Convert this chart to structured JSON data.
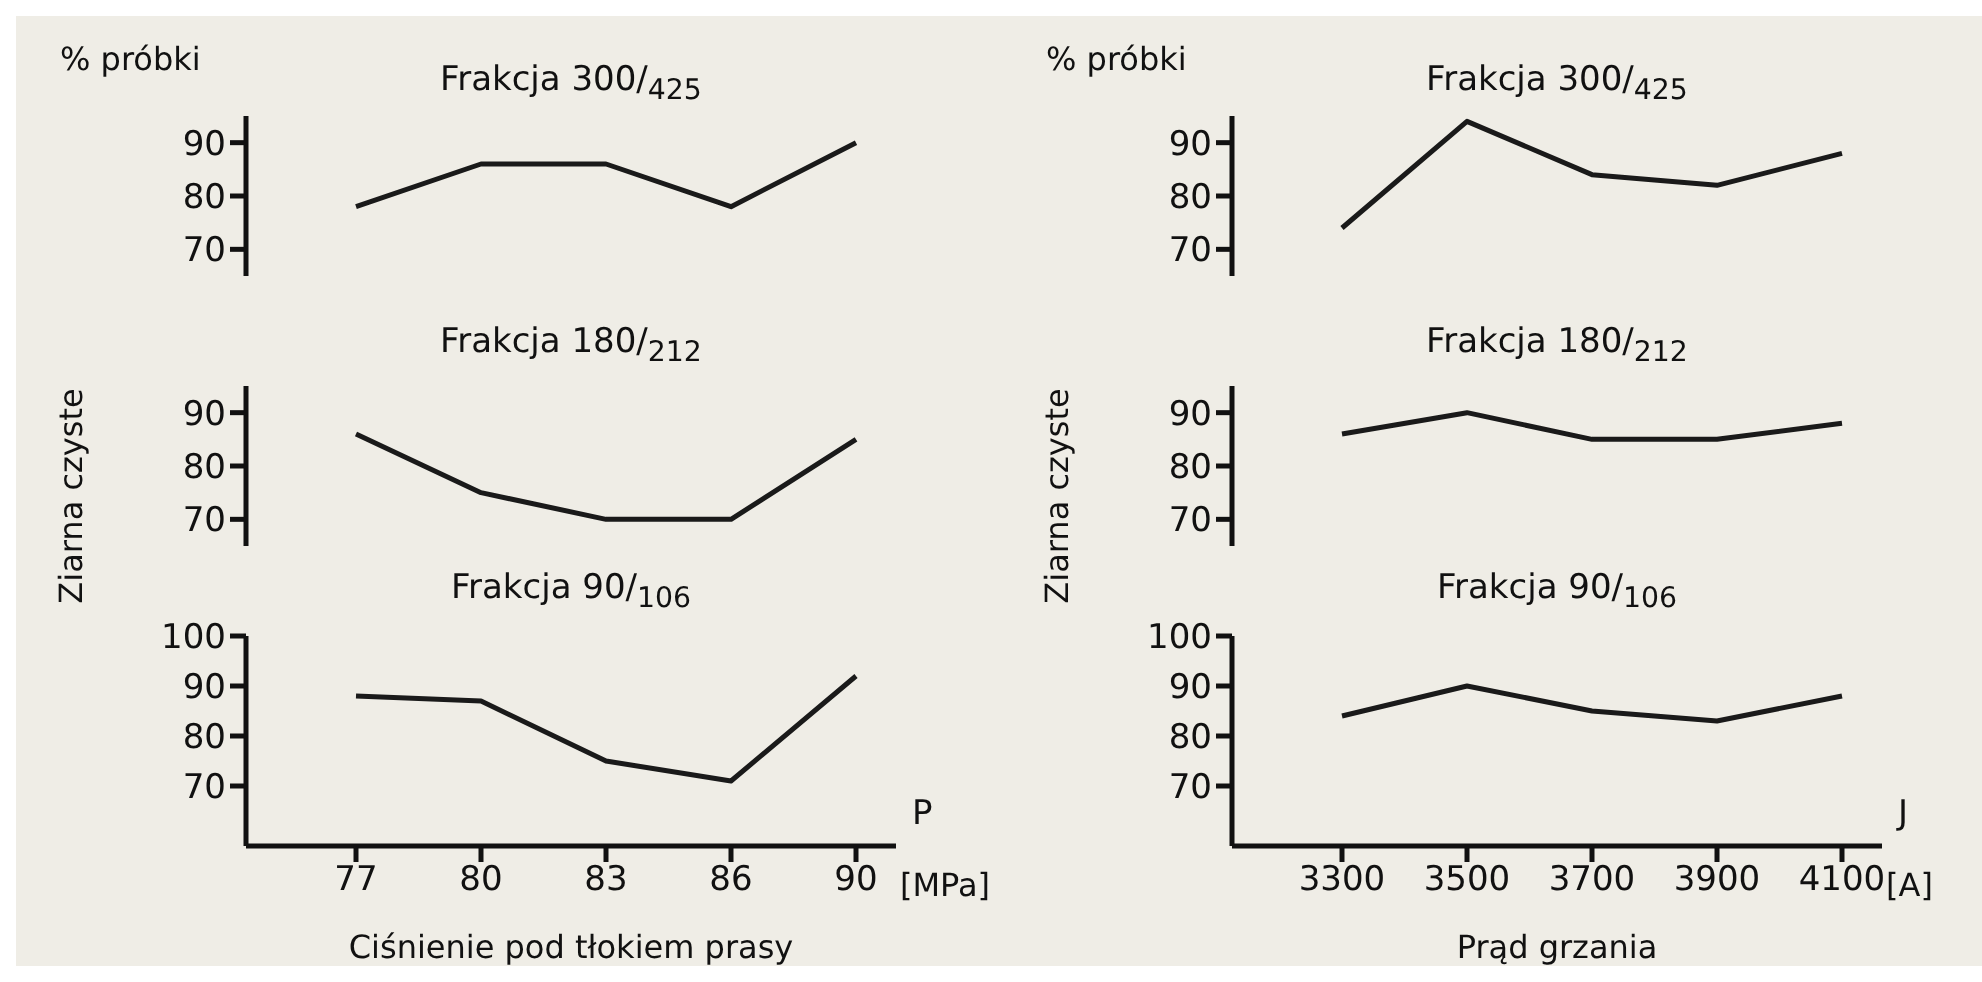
{
  "chart_data": [
    {
      "type": "line",
      "title": "Frakcja 300/$_{425}$",
      "ylabel": "% próbki",
      "categories": [
        "77",
        "80",
        "83",
        "86",
        "90"
      ],
      "values": [
        78,
        86,
        86,
        78,
        90
      ],
      "color": "#1a1a1a",
      "ylim": [
        65,
        95
      ],
      "yticks": [
        70,
        80,
        90
      ],
      "tick_labels": "y"
    },
    {
      "type": "line",
      "title": "Frakcja 180/$_{212}$",
      "ylabel": "Ziarna czyste",
      "categories": [
        "77",
        "80",
        "83",
        "86",
        "90"
      ],
      "values": [
        86,
        75,
        70,
        70,
        85
      ],
      "color": "#1a1a1a",
      "ylim": [
        65,
        95
      ],
      "yticks": [
        70,
        80,
        90
      ],
      "tick_labels": "y"
    },
    {
      "type": "line",
      "title": "Frakcja 90/$_{106}$",
      "xlabel": "Ciśnienie pod tłokiem prasy",
      "annotations": [
        "P",
        "[MPa]"
      ],
      "categories": [
        "77",
        "80",
        "83",
        "86",
        "90"
      ],
      "values": [
        88,
        87,
        75,
        71,
        92
      ],
      "color": "#1a1a1a",
      "ylim": [
        58,
        100
      ],
      "yticks": [
        70,
        80,
        90,
        100
      ]
    },
    {
      "type": "line",
      "title": "Frakcja 300/$_{425}$",
      "ylabel": "% próbki",
      "categories": [
        "3300",
        "3500",
        "3700",
        "3900",
        "4100"
      ],
      "values": [
        74,
        94,
        84,
        82,
        88
      ],
      "color": "#1a1a1a",
      "ylim": [
        65,
        95
      ],
      "yticks": [
        70,
        80,
        90
      ],
      "tick_labels": "y"
    },
    {
      "type": "line",
      "title": "Frakcja 180/$_{212}$",
      "ylabel": "Ziarna czyste",
      "categories": [
        "3300",
        "3500",
        "3700",
        "3900",
        "4100"
      ],
      "values": [
        86,
        90,
        85,
        85,
        88
      ],
      "color": "#1a1a1a",
      "ylim": [
        65,
        95
      ],
      "yticks": [
        70,
        80,
        90
      ],
      "tick_labels": "y"
    },
    {
      "type": "line",
      "title": "Frakcja 90/$_{106}$",
      "xlabel": "Prąd grzania",
      "annotations": [
        "J",
        "[A]"
      ],
      "categories": [
        "3300",
        "3500",
        "3700",
        "3900",
        "4100"
      ],
      "values": [
        84,
        90,
        85,
        83,
        88
      ],
      "color": "#1a1a1a",
      "ylim": [
        58,
        100
      ],
      "yticks": [
        70,
        80,
        90,
        100
      ]
    }
  ]
}
